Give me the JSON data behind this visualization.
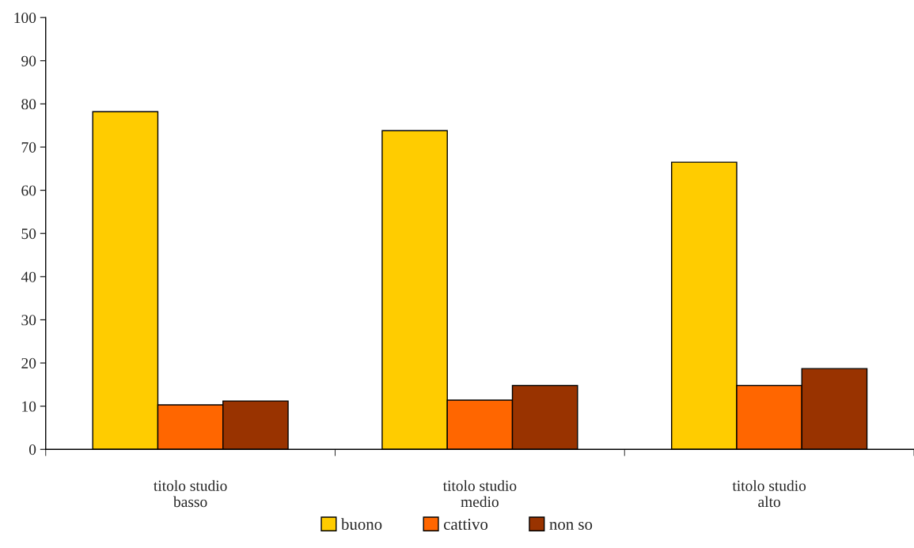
{
  "chart_data": {
    "type": "bar",
    "categories": [
      "titolo studio\nbasso",
      "titolo studio\nmedio",
      "titolo studio\nalto"
    ],
    "series": [
      {
        "name": "buono",
        "color": "#ffcc00",
        "values": [
          78.2,
          73.8,
          66.5
        ]
      },
      {
        "name": "cattivo",
        "color": "#ff6600",
        "values": [
          10.3,
          11.4,
          14.8
        ]
      },
      {
        "name": "non so",
        "color": "#993300",
        "values": [
          11.2,
          14.8,
          18.7
        ]
      }
    ],
    "ylim": [
      0,
      100
    ],
    "yticks": [
      0,
      10,
      20,
      30,
      40,
      50,
      60,
      70,
      80,
      90,
      100
    ],
    "grid": false,
    "legend": "bottom"
  }
}
